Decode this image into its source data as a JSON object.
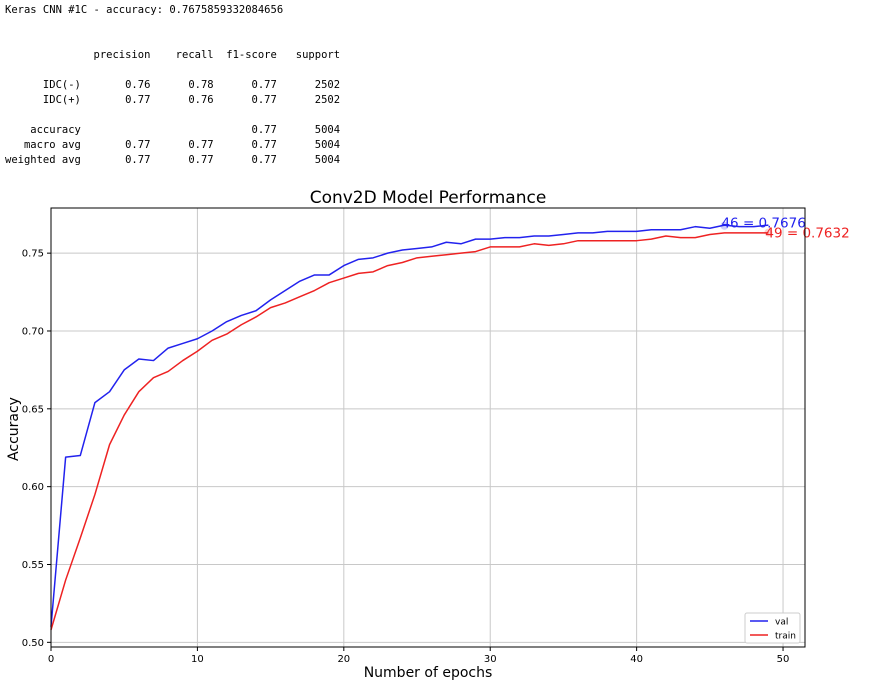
{
  "report": {
    "header": "Keras CNN #1C - accuracy: 0.7675859332084656",
    "columns": [
      "precision",
      "recall",
      "f1-score",
      "support"
    ],
    "rows": [
      {
        "label": "IDC(-)",
        "precision": "0.76",
        "recall": "0.78",
        "f1": "0.77",
        "support": "2502"
      },
      {
        "label": "IDC(+)",
        "precision": "0.77",
        "recall": "0.76",
        "f1": "0.77",
        "support": "2502"
      },
      {
        "label": "",
        "precision": "",
        "recall": "",
        "f1": "",
        "support": ""
      },
      {
        "label": "accuracy",
        "precision": "",
        "recall": "",
        "f1": "0.77",
        "support": "5004"
      },
      {
        "label": "macro avg",
        "precision": "0.77",
        "recall": "0.77",
        "f1": "0.77",
        "support": "5004"
      },
      {
        "label": "weighted avg",
        "precision": "0.77",
        "recall": "0.77",
        "f1": "0.77",
        "support": "5004"
      }
    ]
  },
  "chart_data": {
    "type": "line",
    "title": "Conv2D Model Performance",
    "xlabel": "Number of epochs",
    "ylabel": "Accuracy",
    "xlim": [
      0,
      51.5
    ],
    "ylim": [
      0.497,
      0.779
    ],
    "xticks": [
      0,
      10,
      20,
      30,
      40,
      50
    ],
    "yticks": [
      0.5,
      0.55,
      0.6,
      0.65,
      0.7,
      0.75
    ],
    "ytick_labels": [
      "0.50",
      "0.55",
      "0.60",
      "0.65",
      "0.70",
      "0.75"
    ],
    "grid": true,
    "legend_position": "lower-right",
    "x": [
      0,
      1,
      2,
      3,
      4,
      5,
      6,
      7,
      8,
      9,
      10,
      11,
      12,
      13,
      14,
      15,
      16,
      17,
      18,
      19,
      20,
      21,
      22,
      23,
      24,
      25,
      26,
      27,
      28,
      29,
      30,
      31,
      32,
      33,
      34,
      35,
      36,
      37,
      38,
      39,
      40,
      41,
      42,
      43,
      44,
      45,
      46,
      47,
      48,
      49
    ],
    "series": [
      {
        "name": "val",
        "color": "#2222ee",
        "values": [
          0.51,
          0.619,
          0.62,
          0.654,
          0.661,
          0.675,
          0.682,
          0.681,
          0.689,
          0.692,
          0.695,
          0.7,
          0.706,
          0.71,
          0.713,
          0.72,
          0.726,
          0.732,
          0.736,
          0.736,
          0.742,
          0.746,
          0.747,
          0.75,
          0.752,
          0.753,
          0.754,
          0.757,
          0.756,
          0.759,
          0.759,
          0.76,
          0.76,
          0.761,
          0.761,
          0.762,
          0.763,
          0.763,
          0.764,
          0.764,
          0.764,
          0.765,
          0.765,
          0.765,
          0.767,
          0.766,
          0.768,
          0.767,
          0.767,
          0.768
        ]
      },
      {
        "name": "train",
        "color": "#ee2222",
        "values": [
          0.508,
          0.54,
          0.567,
          0.595,
          0.627,
          0.646,
          0.661,
          0.67,
          0.674,
          0.681,
          0.687,
          0.694,
          0.698,
          0.704,
          0.709,
          0.715,
          0.718,
          0.722,
          0.726,
          0.731,
          0.734,
          0.737,
          0.738,
          0.742,
          0.744,
          0.747,
          0.748,
          0.749,
          0.75,
          0.751,
          0.754,
          0.754,
          0.754,
          0.756,
          0.755,
          0.756,
          0.758,
          0.758,
          0.758,
          0.758,
          0.758,
          0.759,
          0.761,
          0.76,
          0.76,
          0.762,
          0.763,
          0.763,
          0.763,
          0.763
        ]
      }
    ],
    "annotations": [
      {
        "text": "46 = 0.7676",
        "x": 46,
        "y": 0.7676,
        "color": "#2222ee"
      },
      {
        "text": "49 = 0.7632",
        "x": 49,
        "y": 0.7632,
        "color": "#ee2222"
      }
    ]
  }
}
